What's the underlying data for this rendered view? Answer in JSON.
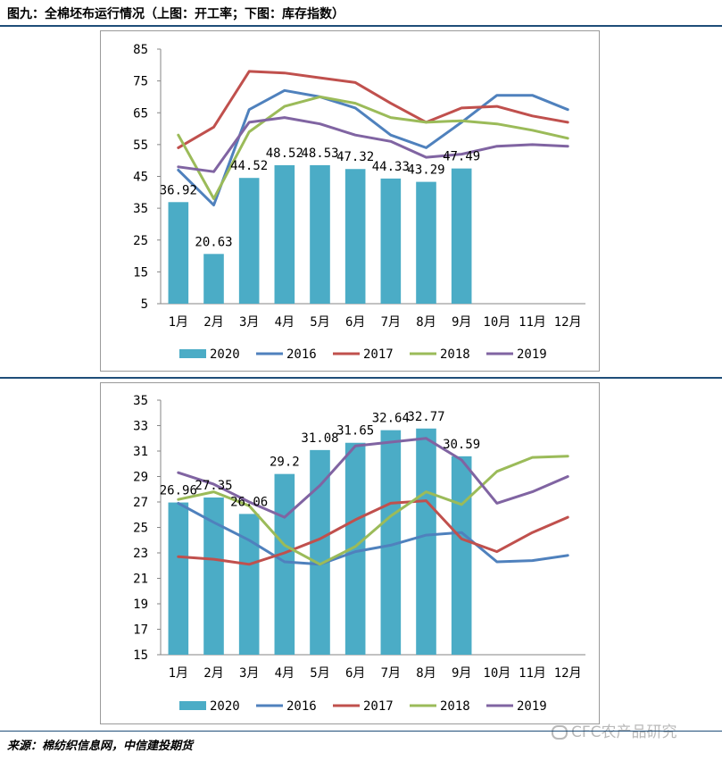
{
  "figure_title": "图九：全棉坯布运行情况（上图：开工率；下图：库存指数）",
  "source": "来源：棉纺织信息网，中信建投期货",
  "watermark": "CFC农产品研究",
  "colors": {
    "2020": "#4bacc6",
    "2016": "#4f81bd",
    "2017": "#c0504d",
    "2018": "#9bbb59",
    "2019": "#8064a2",
    "rule": "#1f4e79"
  },
  "chart_data": [
    {
      "type": "bar",
      "categories": [
        "1月",
        "2月",
        "3月",
        "4月",
        "5月",
        "6月",
        "7月",
        "8月",
        "9月",
        "10月",
        "11月",
        "12月"
      ],
      "ylim": [
        5,
        85
      ],
      "yticks": [
        5,
        15,
        25,
        35,
        45,
        55,
        65,
        75,
        85
      ],
      "bar_series": {
        "name": "2020",
        "values": [
          36.92,
          20.63,
          44.52,
          48.52,
          48.53,
          47.32,
          44.33,
          43.29,
          47.49
        ],
        "labels": [
          "36.92",
          "20.63",
          "44.52",
          "48.52",
          "48.53",
          "47.32",
          "44.33",
          "43.29",
          "47.49"
        ]
      },
      "series": [
        {
          "name": "2016",
          "values": [
            47,
            36,
            66,
            72,
            70,
            66.5,
            58,
            54,
            62,
            70.5,
            70.5,
            66
          ]
        },
        {
          "name": "2017",
          "values": [
            54,
            60.5,
            78,
            77.5,
            76,
            74.5,
            68,
            62,
            66.5,
            67,
            64,
            62
          ]
        },
        {
          "name": "2018",
          "values": [
            58,
            38,
            59,
            67,
            70,
            68,
            63.5,
            62,
            62.5,
            61.5,
            59.5,
            57
          ]
        },
        {
          "name": "2019",
          "values": [
            48,
            46.5,
            62,
            63.5,
            61.5,
            58,
            56,
            51,
            52,
            54.5,
            55,
            54.5
          ]
        }
      ],
      "legend": [
        "2020",
        "2016",
        "2017",
        "2018",
        "2019"
      ],
      "legend_position": "bottom"
    },
    {
      "type": "bar",
      "categories": [
        "1月",
        "2月",
        "3月",
        "4月",
        "5月",
        "6月",
        "7月",
        "8月",
        "9月",
        "10月",
        "11月",
        "12月"
      ],
      "ylim": [
        15,
        35
      ],
      "yticks": [
        15,
        17,
        19,
        21,
        23,
        25,
        27,
        29,
        31,
        33,
        35
      ],
      "bar_series": {
        "name": "2020",
        "values": [
          26.96,
          27.35,
          26.06,
          29.2,
          31.08,
          31.65,
          32.64,
          32.77,
          30.59
        ],
        "labels": [
          "26.96",
          "27.35",
          "26.06",
          "29.2",
          "31.08",
          "31.65",
          "32.64",
          "32.77",
          "30.59"
        ]
      },
      "series": [
        {
          "name": "2016",
          "values": [
            26.9,
            25.4,
            24,
            22.3,
            22.1,
            23.1,
            23.6,
            24.4,
            24.6,
            22.3,
            22.4,
            22.8
          ]
        },
        {
          "name": "2017",
          "values": [
            22.7,
            22.5,
            22.1,
            23,
            24.1,
            25.6,
            26.9,
            27.1,
            24.1,
            23.1,
            24.6,
            25.8
          ]
        },
        {
          "name": "2018",
          "values": [
            27.2,
            27.8,
            26.7,
            23.6,
            22.1,
            23.5,
            25.9,
            27.8,
            26.8,
            29.4,
            30.5,
            30.6
          ]
        },
        {
          "name": "2019",
          "values": [
            29.3,
            28.4,
            27,
            25.8,
            28.3,
            31.4,
            31.7,
            32,
            30.3,
            26.9,
            27.8,
            29
          ]
        }
      ],
      "legend": [
        "2020",
        "2016",
        "2017",
        "2018",
        "2019"
      ],
      "legend_position": "bottom"
    }
  ]
}
